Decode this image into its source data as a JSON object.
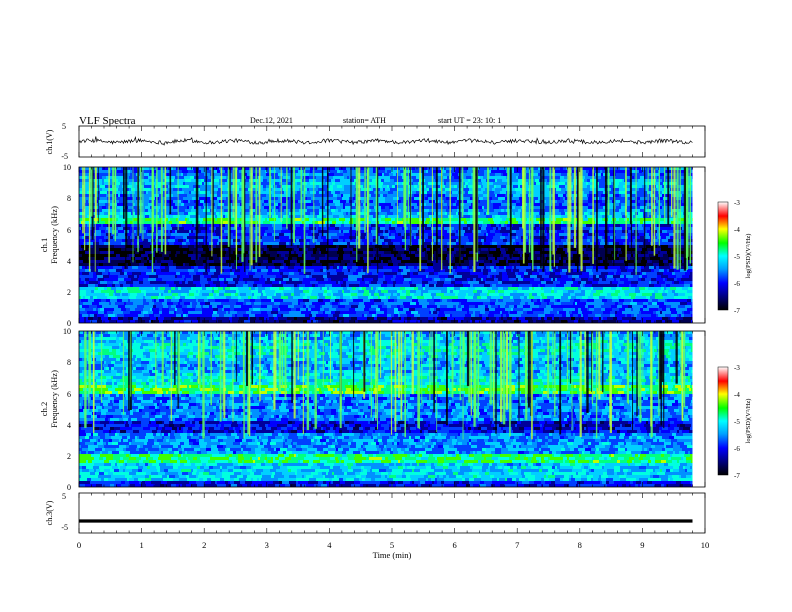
{
  "header": {
    "title": "VLF  Spectra",
    "date": "Dec.12, 2021",
    "station": "station= ATH",
    "start": "start  UT  =    23: 10: 1"
  },
  "chart_data": [
    {
      "type": "line",
      "panel": "ch1-waveform",
      "ylabel": "ch.1(V)",
      "yticks": [
        "5",
        "-5"
      ],
      "ylim": [
        -5,
        5
      ],
      "xlim": [
        0,
        10
      ],
      "trace_level": 0.0,
      "trace_amplitude": 0.6
    },
    {
      "type": "heatmap",
      "panel": "ch1-spectrogram",
      "ylabel_line1": "ch.1",
      "ylabel_line2": "Frequency  (kHz)",
      "yticks": [
        "0",
        "2",
        "4",
        "6",
        "8",
        "10"
      ],
      "ylim": [
        0,
        10
      ],
      "xlim": [
        0,
        10
      ],
      "data_xmax": 9.8,
      "colorbar": {
        "label": "log(PSD)(V²/Hz)",
        "ticks": [
          "-3",
          "-4",
          "-5",
          "-6",
          "-7"
        ],
        "range": [
          -7,
          -3
        ]
      }
    },
    {
      "type": "heatmap",
      "panel": "ch2-spectrogram",
      "ylabel_line1": "ch.2",
      "ylabel_line2": "Frequency  (kHz)",
      "yticks": [
        "0",
        "2",
        "4",
        "6",
        "8",
        "10"
      ],
      "ylim": [
        0,
        10
      ],
      "xlim": [
        0,
        10
      ],
      "data_xmax": 9.8,
      "colorbar": {
        "label": "log(PSD)(V²/Hz)",
        "ticks": [
          "-3",
          "-4",
          "-5",
          "-6",
          "-7"
        ],
        "range": [
          -7,
          -3
        ]
      }
    },
    {
      "type": "line",
      "panel": "ch3-waveform",
      "ylabel": "ch.3(V)",
      "yticks": [
        "5",
        "-5"
      ],
      "ylim": [
        -5,
        5
      ],
      "xlim": [
        0,
        10
      ],
      "trace_level": -2.0,
      "trace_amplitude": 0.0,
      "xlabel": "Time  (min)",
      "xticks": [
        "0",
        "1",
        "2",
        "3",
        "4",
        "5",
        "6",
        "7",
        "8",
        "9",
        "10"
      ]
    }
  ],
  "colors": {
    "background": "#ffffff",
    "axes": "#000000",
    "trace": "#000000"
  }
}
